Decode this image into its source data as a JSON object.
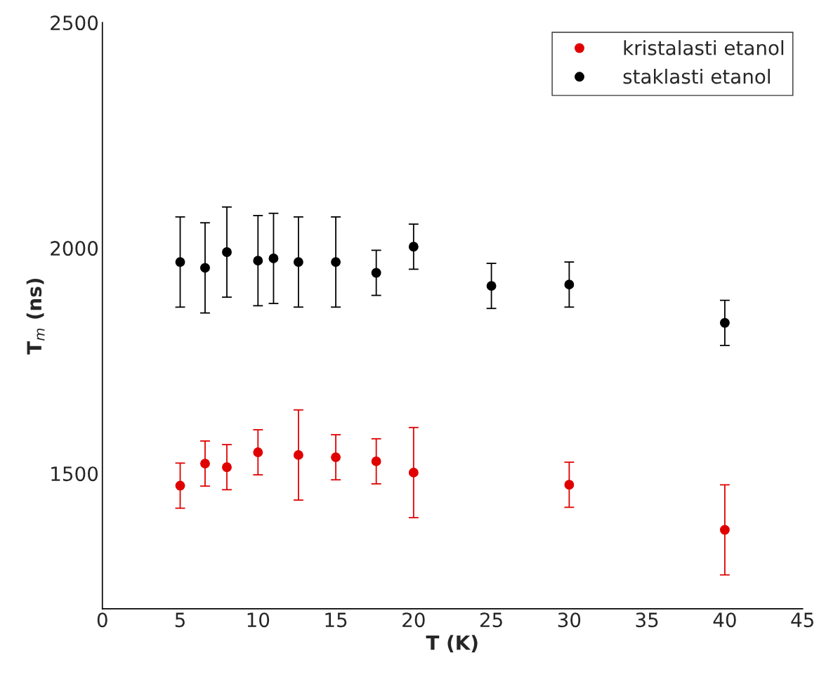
{
  "chart_data": {
    "type": "scatter",
    "xlabel": "T (K)",
    "ylabel": "T$_{m}$ (ns)",
    "xlim": [
      0,
      45
    ],
    "xticks": [
      0,
      5,
      10,
      15,
      20,
      25,
      30,
      35,
      40,
      45
    ],
    "ylim": [
      1200,
      2500
    ],
    "yticks": [
      1500,
      2000,
      2500
    ],
    "legend": "top right",
    "marker": "circle",
    "grid": false,
    "series": [
      {
        "name": "kristalasti etanol",
        "color": "#e00000",
        "x": [
          5,
          6.6,
          8,
          10,
          12.6,
          15,
          17.6,
          20,
          30,
          40
        ],
        "values": [
          1473,
          1522,
          1514,
          1547,
          1541,
          1536,
          1527,
          1502,
          1475,
          1375
        ],
        "errors": [
          50,
          50,
          50,
          50,
          100,
          50,
          50,
          100,
          50,
          100
        ]
      },
      {
        "name": "staklasti etanol",
        "color": "#000000",
        "x": [
          5,
          6.6,
          8,
          10,
          11,
          12.6,
          15,
          17.6,
          20,
          25,
          30,
          40
        ],
        "values": [
          1969,
          1956,
          1991,
          1972,
          1977,
          1969,
          1969,
          1945,
          2003,
          1916,
          1919,
          1834
        ],
        "errors": [
          100,
          100,
          100,
          100,
          100,
          100,
          100,
          50,
          50,
          50,
          50,
          50
        ]
      }
    ]
  }
}
